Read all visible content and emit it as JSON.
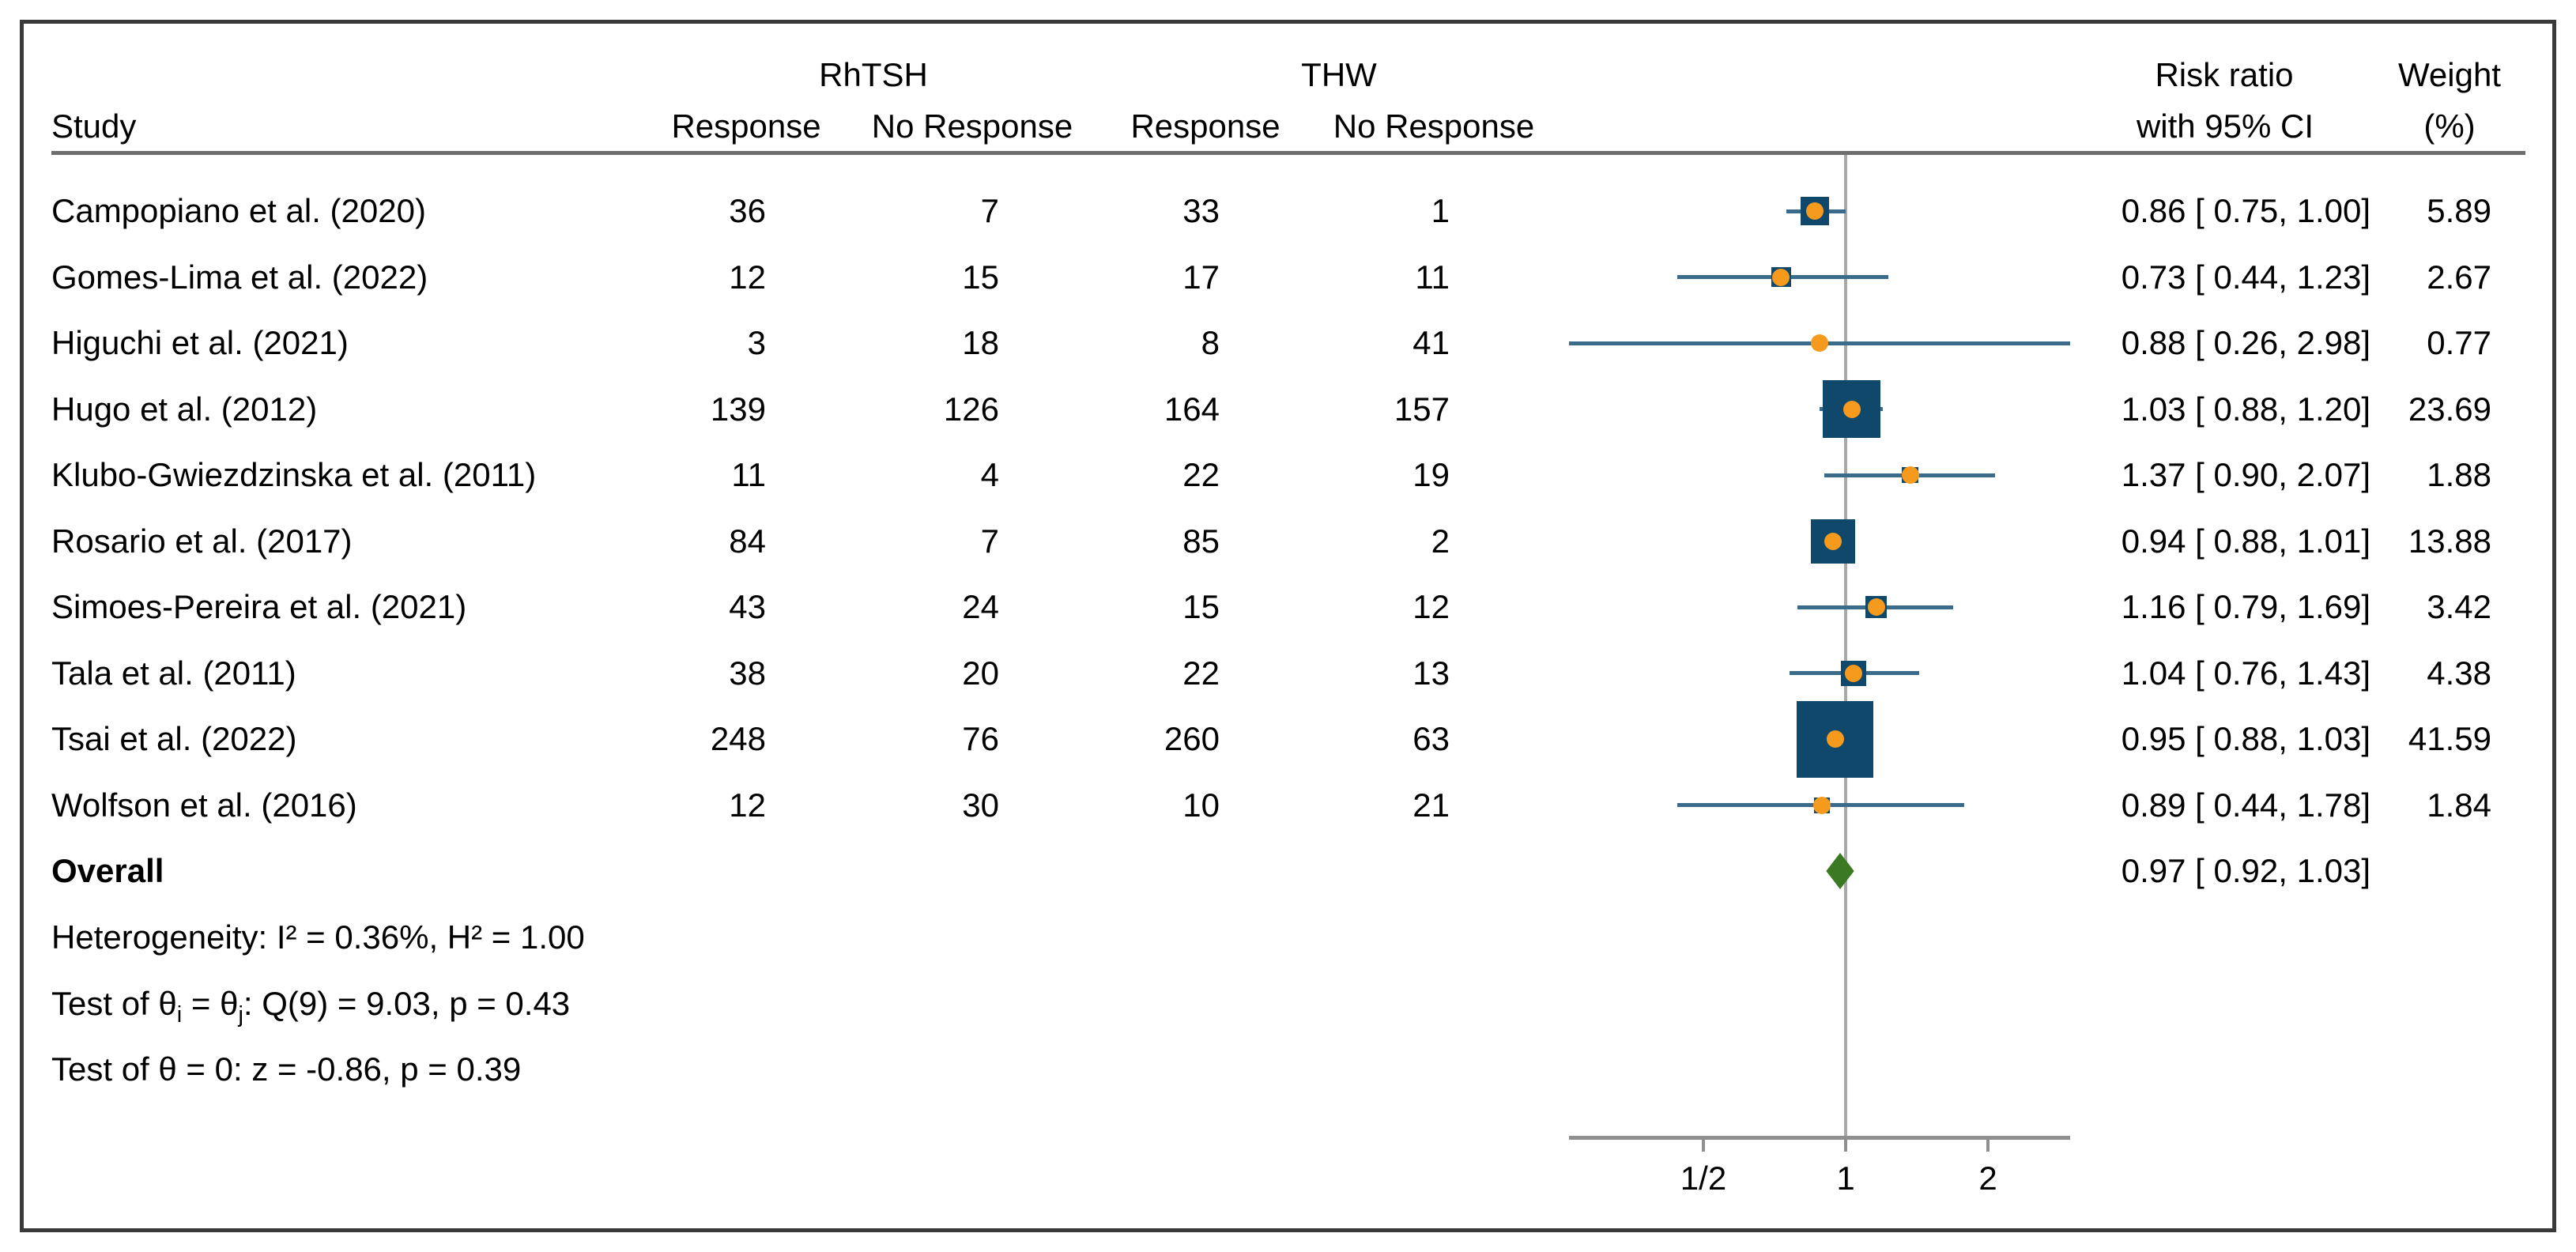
{
  "header": {
    "group1": "RhTSH",
    "group2": "THW",
    "study": "Study",
    "col_response_1": "Response",
    "col_no_response_1": "No Response",
    "col_response_2": "Response",
    "col_no_response_2": "No Response",
    "rr_line1": "Risk ratio",
    "rr_line2": "with 95% CI",
    "weight_line1": "Weight",
    "weight_line2": "(%)"
  },
  "rows": [
    {
      "study": "Campopiano et al. (2020)",
      "rhtsh_response": "36",
      "rhtsh_no_response": "7",
      "thw_response": "33",
      "thw_no_response": "1",
      "rr_ci": "0.86 [ 0.75, 1.00]",
      "weight": "5.89"
    },
    {
      "study": "Gomes-Lima et al. (2022)",
      "rhtsh_response": "12",
      "rhtsh_no_response": "15",
      "thw_response": "17",
      "thw_no_response": "11",
      "rr_ci": "0.73 [ 0.44, 1.23]",
      "weight": "2.67"
    },
    {
      "study": "Higuchi et al. (2021)",
      "rhtsh_response": "3",
      "rhtsh_no_response": "18",
      "thw_response": "8",
      "thw_no_response": "41",
      "rr_ci": "0.88 [ 0.26, 2.98]",
      "weight": "0.77"
    },
    {
      "study": "Hugo et al. (2012)",
      "rhtsh_response": "139",
      "rhtsh_no_response": "126",
      "thw_response": "164",
      "thw_no_response": "157",
      "rr_ci": "1.03 [ 0.88, 1.20]",
      "weight": "23.69"
    },
    {
      "study": "Klubo-Gwiezdzinska et al. (2011)",
      "rhtsh_response": "11",
      "rhtsh_no_response": "4",
      "thw_response": "22",
      "thw_no_response": "19",
      "rr_ci": "1.37 [ 0.90, 2.07]",
      "weight": "1.88"
    },
    {
      "study": "Rosario et al. (2017)",
      "rhtsh_response": "84",
      "rhtsh_no_response": "7",
      "thw_response": "85",
      "thw_no_response": "2",
      "rr_ci": "0.94 [ 0.88, 1.01]",
      "weight": "13.88"
    },
    {
      "study": "Simoes-Pereira et al. (2021)",
      "rhtsh_response": "43",
      "rhtsh_no_response": "24",
      "thw_response": "15",
      "thw_no_response": "12",
      "rr_ci": "1.16 [ 0.79, 1.69]",
      "weight": "3.42"
    },
    {
      "study": "Tala et al. (2011)",
      "rhtsh_response": "38",
      "rhtsh_no_response": "20",
      "thw_response": "22",
      "thw_no_response": "13",
      "rr_ci": "1.04 [ 0.76, 1.43]",
      "weight": "4.38"
    },
    {
      "study": "Tsai et al. (2022)",
      "rhtsh_response": "248",
      "rhtsh_no_response": "76",
      "thw_response": "260",
      "thw_no_response": "63",
      "rr_ci": "0.95 [ 0.88, 1.03]",
      "weight": "41.59"
    },
    {
      "study": "Wolfson et al. (2016)",
      "rhtsh_response": "12",
      "rhtsh_no_response": "30",
      "thw_response": "10",
      "thw_no_response": "21",
      "rr_ci": "0.89 [ 0.44, 1.78]",
      "weight": "1.84"
    }
  ],
  "overall": {
    "label": "Overall",
    "rr_ci": "0.97 [ 0.92, 1.03]"
  },
  "stats": {
    "heterogeneity": "Heterogeneity: I² = 0.36%, H² = 1.00",
    "test_theta": {
      "p1": "Test of θ",
      "sub1": "i",
      "p2": " = θ",
      "sub2": "j",
      "p3": ": Q(9) = 9.03, p = 0.43"
    },
    "test_zero": "Test of θ = 0: z = -0.86, p = 0.39"
  },
  "axis": {
    "ticks": [
      {
        "label": "1/2"
      },
      {
        "label": "1"
      },
      {
        "label": "2"
      }
    ]
  },
  "colors": {
    "square": "#10486b",
    "dot": "#f59a1d",
    "ci_line": "#3a6b8a",
    "diamond": "#3b7a23",
    "ref_line": "#a8a8a8",
    "axis": "#8f8f8f"
  },
  "chart_data": {
    "type": "scatter",
    "subtype": "forest-plot",
    "x_scale": "log2",
    "x_axis_range": [
      0.26,
      2.98
    ],
    "x_ticks": [
      {
        "value": 0.5,
        "label": "1/2"
      },
      {
        "value": 1,
        "label": "1"
      },
      {
        "value": 2,
        "label": "2"
      }
    ],
    "reference_line_x": 1,
    "legend_position": "none",
    "grid": false,
    "xlabel": "",
    "ylabel": "",
    "studies": [
      {
        "name": "Campopiano et al. (2020)",
        "rr": 0.86,
        "ci_low": 0.75,
        "ci_high": 1.0,
        "weight_pct": 5.89
      },
      {
        "name": "Gomes-Lima et al. (2022)",
        "rr": 0.73,
        "ci_low": 0.44,
        "ci_high": 1.23,
        "weight_pct": 2.67
      },
      {
        "name": "Higuchi et al. (2021)",
        "rr": 0.88,
        "ci_low": 0.26,
        "ci_high": 2.98,
        "weight_pct": 0.77
      },
      {
        "name": "Hugo et al. (2012)",
        "rr": 1.03,
        "ci_low": 0.88,
        "ci_high": 1.2,
        "weight_pct": 23.69
      },
      {
        "name": "Klubo-Gwiezdzinska et al. (2011)",
        "rr": 1.37,
        "ci_low": 0.9,
        "ci_high": 2.07,
        "weight_pct": 1.88
      },
      {
        "name": "Rosario et al. (2017)",
        "rr": 0.94,
        "ci_low": 0.88,
        "ci_high": 1.01,
        "weight_pct": 13.88
      },
      {
        "name": "Simoes-Pereira et al. (2021)",
        "rr": 1.16,
        "ci_low": 0.79,
        "ci_high": 1.69,
        "weight_pct": 3.42
      },
      {
        "name": "Tala et al. (2011)",
        "rr": 1.04,
        "ci_low": 0.76,
        "ci_high": 1.43,
        "weight_pct": 4.38
      },
      {
        "name": "Tsai et al. (2022)",
        "rr": 0.95,
        "ci_low": 0.88,
        "ci_high": 1.03,
        "weight_pct": 41.59
      },
      {
        "name": "Wolfson et al. (2016)",
        "rr": 0.89,
        "ci_low": 0.44,
        "ci_high": 1.78,
        "weight_pct": 1.84
      }
    ],
    "overall": {
      "rr": 0.97,
      "ci_low": 0.92,
      "ci_high": 1.03
    }
  }
}
